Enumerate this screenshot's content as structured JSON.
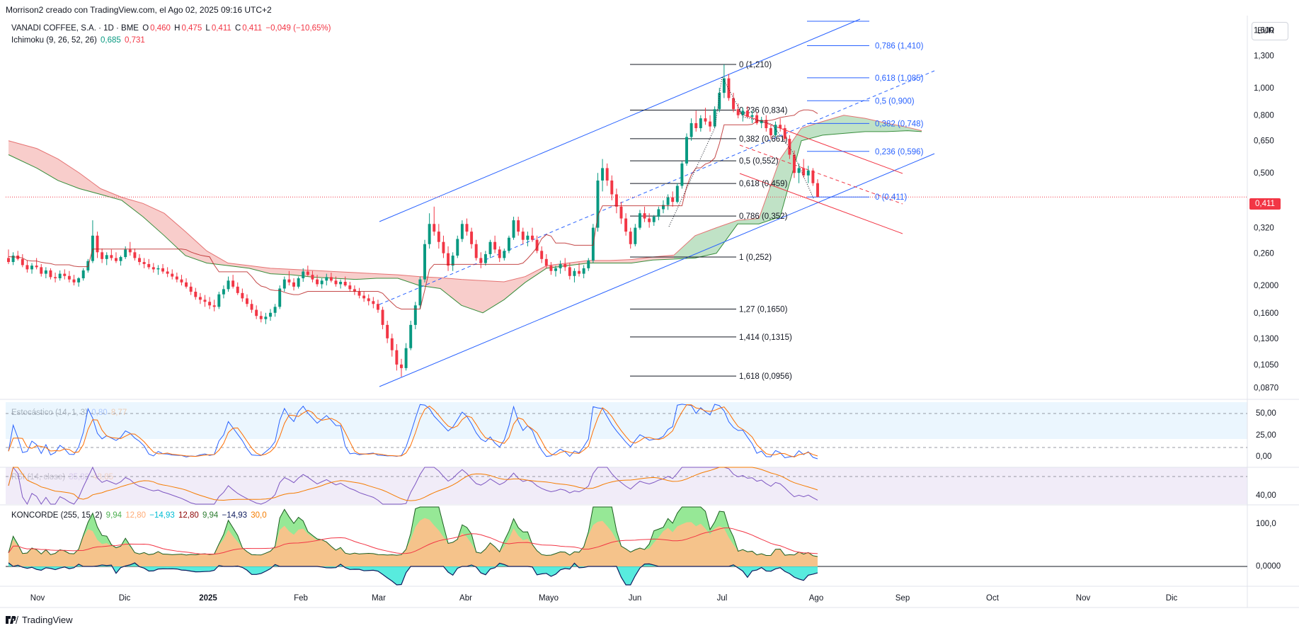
{
  "header": {
    "text": "Morrison2 creado con TradingView.com, el Ago 02, 2025 09:16 UTC+2"
  },
  "legend_main": {
    "symbol": "VANADI COFFEE, S.A. · 1D · BME",
    "o_label": "O",
    "o_value": "0,460",
    "h_label": "H",
    "h_value": "0,475",
    "l_label": "L",
    "l_value": "0,411",
    "c_label": "C",
    "c_value": "0,411",
    "change": "−0,049 (−10,65%)"
  },
  "legend_ichimoku": {
    "name": "Ichimoku (9, 26, 52, 26)",
    "v1": "0,685",
    "v2": "0,731"
  },
  "legend_stoch": {
    "name": "Estocástico (14, 1, 3)",
    "v1": "0,80",
    "v2": "8,77"
  },
  "legend_rsi": {
    "name": "RSI (14, close)",
    "v1": "35,82",
    "v2": "43,85"
  },
  "legend_koncorde": {
    "name": "KONCORDE (255, 15, 2)",
    "values": [
      "9,94",
      "12,80",
      "−14,93",
      "12,80",
      "9,94",
      "−14,93",
      "30,0"
    ]
  },
  "currency": "EUR",
  "last_price": "0,411",
  "footer": {
    "brand": "TradingView"
  },
  "colors": {
    "up": "#089981",
    "down": "#f23645",
    "fib_black": "#131722",
    "fib_blue": "#2962ff",
    "channel": "#2962ff",
    "downtrend": "#f23645",
    "kumo_bear": "#f7c8c5",
    "kumo_bull": "#b9dfc0",
    "stoch_k": "#2962ff",
    "stoch_d": "#ff6d00",
    "rsi": "#7e57c2",
    "rsi_ma": "#f57c00"
  },
  "chart_data": {
    "type": "candlestick",
    "scale": "log",
    "x_ticks": [
      "Nov",
      "Dic",
      "2025",
      "Feb",
      "Mar",
      "Abr",
      "Mayo",
      "Jun",
      "Jul",
      "Ago",
      "Sep",
      "Oct",
      "Nov",
      "Dic"
    ],
    "y_ticks": [
      "1,600",
      "1,300",
      "1,000",
      "0,800",
      "0,650",
      "0,500",
      "0,320",
      "0,260",
      "0,2000",
      "0,1600",
      "0,1300",
      "0,1050",
      "0,0870"
    ],
    "fib_retracement": [
      {
        "level": "0",
        "price": 1.21,
        "label": "0 (1,210)"
      },
      {
        "level": "0,236",
        "price": 0.834,
        "label": "0,236 (0,834)"
      },
      {
        "level": "0,382",
        "price": 0.661,
        "label": "0,382 (0,661)"
      },
      {
        "level": "0,5",
        "price": 0.552,
        "label": "0,5 (0,552)"
      },
      {
        "level": "0,618",
        "price": 0.459,
        "label": "0,618 (0,459)"
      },
      {
        "level": "0,786",
        "price": 0.352,
        "label": "0,786 (0,352)"
      },
      {
        "level": "1",
        "price": 0.252,
        "label": "1 (0,252)"
      },
      {
        "level": "1,27",
        "price": 0.165,
        "label": "1,27 (0,1650)"
      },
      {
        "level": "1,414",
        "price": 0.1315,
        "label": "1,414 (0,1315)"
      },
      {
        "level": "1,618",
        "price": 0.0956,
        "label": "1,618 (0,0956)"
      }
    ],
    "fib_extension": [
      {
        "level": "0,786",
        "price": 1.41,
        "label": "0,786 (1,410)"
      },
      {
        "level": "0,618",
        "price": 1.085,
        "label": "0,618 (1,085)"
      },
      {
        "level": "0,5",
        "price": 0.9,
        "label": "0,5 (0,900)"
      },
      {
        "level": "0,382",
        "price": 0.748,
        "label": "0,382 (0,748)"
      },
      {
        "level": "0,236",
        "price": 0.596,
        "label": "0,236 (0,596)"
      },
      {
        "level": "0",
        "price": 0.411,
        "label": "0 (0,411)"
      }
    ],
    "candles": [
      [
        0.25,
        0.268,
        0.238,
        0.242
      ],
      [
        0.242,
        0.262,
        0.236,
        0.255
      ],
      [
        0.255,
        0.265,
        0.245,
        0.248
      ],
      [
        0.248,
        0.258,
        0.232,
        0.236
      ],
      [
        0.236,
        0.245,
        0.222,
        0.228
      ],
      [
        0.228,
        0.24,
        0.22,
        0.235
      ],
      [
        0.235,
        0.25,
        0.228,
        0.232
      ],
      [
        0.232,
        0.238,
        0.215,
        0.22
      ],
      [
        0.22,
        0.232,
        0.212,
        0.226
      ],
      [
        0.226,
        0.23,
        0.21,
        0.214
      ],
      [
        0.214,
        0.222,
        0.205,
        0.212
      ],
      [
        0.212,
        0.226,
        0.208,
        0.22
      ],
      [
        0.22,
        0.228,
        0.21,
        0.216
      ],
      [
        0.216,
        0.225,
        0.205,
        0.21
      ],
      [
        0.21,
        0.218,
        0.2,
        0.205
      ],
      [
        0.205,
        0.214,
        0.198,
        0.212
      ],
      [
        0.212,
        0.23,
        0.208,
        0.226
      ],
      [
        0.226,
        0.248,
        0.222,
        0.244
      ],
      [
        0.244,
        0.34,
        0.24,
        0.3
      ],
      [
        0.3,
        0.31,
        0.25,
        0.262
      ],
      [
        0.262,
        0.27,
        0.24,
        0.248
      ],
      [
        0.248,
        0.262,
        0.236,
        0.256
      ],
      [
        0.256,
        0.268,
        0.245,
        0.25
      ],
      [
        0.25,
        0.262,
        0.24,
        0.244
      ],
      [
        0.244,
        0.255,
        0.235,
        0.252
      ],
      [
        0.252,
        0.275,
        0.248,
        0.268
      ],
      [
        0.268,
        0.285,
        0.255,
        0.262
      ],
      [
        0.262,
        0.27,
        0.245,
        0.25
      ],
      [
        0.25,
        0.258,
        0.236,
        0.242
      ],
      [
        0.242,
        0.25,
        0.23,
        0.238
      ],
      [
        0.238,
        0.248,
        0.228,
        0.232
      ],
      [
        0.232,
        0.24,
        0.222,
        0.228
      ],
      [
        0.228,
        0.236,
        0.218,
        0.23
      ],
      [
        0.23,
        0.238,
        0.22,
        0.224
      ],
      [
        0.224,
        0.232,
        0.214,
        0.22
      ],
      [
        0.22,
        0.228,
        0.21,
        0.215
      ],
      [
        0.215,
        0.222,
        0.205,
        0.21
      ],
      [
        0.21,
        0.218,
        0.2,
        0.205
      ],
      [
        0.205,
        0.212,
        0.195,
        0.198
      ],
      [
        0.198,
        0.205,
        0.185,
        0.19
      ],
      [
        0.19,
        0.196,
        0.178,
        0.182
      ],
      [
        0.182,
        0.188,
        0.172,
        0.178
      ],
      [
        0.178,
        0.185,
        0.168,
        0.175
      ],
      [
        0.175,
        0.182,
        0.165,
        0.17
      ],
      [
        0.17,
        0.178,
        0.162,
        0.168
      ],
      [
        0.168,
        0.19,
        0.165,
        0.186
      ],
      [
        0.186,
        0.2,
        0.18,
        0.194
      ],
      [
        0.194,
        0.215,
        0.19,
        0.208
      ],
      [
        0.208,
        0.218,
        0.195,
        0.198
      ],
      [
        0.198,
        0.205,
        0.185,
        0.188
      ],
      [
        0.188,
        0.195,
        0.175,
        0.18
      ],
      [
        0.18,
        0.186,
        0.168,
        0.172
      ],
      [
        0.172,
        0.178,
        0.16,
        0.164
      ],
      [
        0.164,
        0.17,
        0.152,
        0.156
      ],
      [
        0.156,
        0.162,
        0.148,
        0.152
      ],
      [
        0.152,
        0.16,
        0.146,
        0.155
      ],
      [
        0.155,
        0.165,
        0.15,
        0.16
      ],
      [
        0.16,
        0.172,
        0.155,
        0.168
      ],
      [
        0.168,
        0.2,
        0.165,
        0.195
      ],
      [
        0.195,
        0.215,
        0.19,
        0.21
      ],
      [
        0.21,
        0.225,
        0.2,
        0.205
      ],
      [
        0.205,
        0.212,
        0.192,
        0.198
      ],
      [
        0.198,
        0.215,
        0.195,
        0.212
      ],
      [
        0.212,
        0.23,
        0.206,
        0.224
      ],
      [
        0.224,
        0.235,
        0.215,
        0.218
      ],
      [
        0.218,
        0.225,
        0.205,
        0.21
      ],
      [
        0.21,
        0.218,
        0.198,
        0.202
      ],
      [
        0.202,
        0.212,
        0.195,
        0.208
      ],
      [
        0.208,
        0.22,
        0.2,
        0.214
      ],
      [
        0.214,
        0.222,
        0.205,
        0.208
      ],
      [
        0.208,
        0.215,
        0.198,
        0.202
      ],
      [
        0.202,
        0.21,
        0.195,
        0.206
      ],
      [
        0.206,
        0.215,
        0.198,
        0.2
      ],
      [
        0.2,
        0.206,
        0.19,
        0.194
      ],
      [
        0.194,
        0.2,
        0.185,
        0.19
      ],
      [
        0.19,
        0.196,
        0.18,
        0.184
      ],
      [
        0.184,
        0.19,
        0.175,
        0.18
      ],
      [
        0.18,
        0.186,
        0.17,
        0.176
      ],
      [
        0.176,
        0.182,
        0.166,
        0.172
      ],
      [
        0.172,
        0.178,
        0.16,
        0.164
      ],
      [
        0.164,
        0.168,
        0.14,
        0.145
      ],
      [
        0.145,
        0.15,
        0.125,
        0.13
      ],
      [
        0.13,
        0.135,
        0.112,
        0.118
      ],
      [
        0.118,
        0.124,
        0.1,
        0.105
      ],
      [
        0.105,
        0.11,
        0.095,
        0.102
      ],
      [
        0.102,
        0.125,
        0.1,
        0.12
      ],
      [
        0.12,
        0.15,
        0.118,
        0.145
      ],
      [
        0.145,
        0.175,
        0.14,
        0.17
      ],
      [
        0.17,
        0.215,
        0.165,
        0.21
      ],
      [
        0.21,
        0.29,
        0.205,
        0.28
      ],
      [
        0.28,
        0.36,
        0.27,
        0.33
      ],
      [
        0.33,
        0.38,
        0.3,
        0.31
      ],
      [
        0.31,
        0.33,
        0.27,
        0.285
      ],
      [
        0.285,
        0.3,
        0.25,
        0.26
      ],
      [
        0.26,
        0.275,
        0.225,
        0.235
      ],
      [
        0.235,
        0.262,
        0.225,
        0.255
      ],
      [
        0.255,
        0.3,
        0.25,
        0.292
      ],
      [
        0.292,
        0.34,
        0.285,
        0.33
      ],
      [
        0.33,
        0.345,
        0.3,
        0.31
      ],
      [
        0.31,
        0.32,
        0.27,
        0.28
      ],
      [
        0.28,
        0.29,
        0.245,
        0.25
      ],
      [
        0.25,
        0.262,
        0.23,
        0.24
      ],
      [
        0.24,
        0.265,
        0.235,
        0.258
      ],
      [
        0.258,
        0.29,
        0.25,
        0.285
      ],
      [
        0.285,
        0.3,
        0.26,
        0.268
      ],
      [
        0.268,
        0.275,
        0.242,
        0.25
      ],
      [
        0.25,
        0.27,
        0.245,
        0.265
      ],
      [
        0.265,
        0.3,
        0.26,
        0.295
      ],
      [
        0.295,
        0.35,
        0.29,
        0.34
      ],
      [
        0.34,
        0.35,
        0.3,
        0.31
      ],
      [
        0.31,
        0.32,
        0.28,
        0.29
      ],
      [
        0.29,
        0.31,
        0.275,
        0.3
      ],
      [
        0.3,
        0.32,
        0.285,
        0.29
      ],
      [
        0.29,
        0.3,
        0.26,
        0.265
      ],
      [
        0.265,
        0.275,
        0.24,
        0.248
      ],
      [
        0.248,
        0.258,
        0.23,
        0.235
      ],
      [
        0.235,
        0.242,
        0.218,
        0.225
      ],
      [
        0.225,
        0.235,
        0.215,
        0.23
      ],
      [
        0.23,
        0.245,
        0.22,
        0.238
      ],
      [
        0.238,
        0.25,
        0.225,
        0.232
      ],
      [
        0.232,
        0.24,
        0.21,
        0.216
      ],
      [
        0.216,
        0.23,
        0.205,
        0.225
      ],
      [
        0.225,
        0.24,
        0.215,
        0.22
      ],
      [
        0.22,
        0.236,
        0.212,
        0.23
      ],
      [
        0.23,
        0.25,
        0.225,
        0.245
      ],
      [
        0.245,
        0.33,
        0.24,
        0.32
      ],
      [
        0.32,
        0.5,
        0.31,
        0.47
      ],
      [
        0.47,
        0.56,
        0.43,
        0.52
      ],
      [
        0.52,
        0.54,
        0.45,
        0.47
      ],
      [
        0.47,
        0.49,
        0.4,
        0.42
      ],
      [
        0.42,
        0.44,
        0.36,
        0.38
      ],
      [
        0.38,
        0.395,
        0.33,
        0.345
      ],
      [
        0.345,
        0.36,
        0.3,
        0.31
      ],
      [
        0.31,
        0.32,
        0.27,
        0.28
      ],
      [
        0.28,
        0.33,
        0.275,
        0.32
      ],
      [
        0.32,
        0.37,
        0.315,
        0.36
      ],
      [
        0.36,
        0.38,
        0.335,
        0.345
      ],
      [
        0.345,
        0.36,
        0.32,
        0.335
      ],
      [
        0.335,
        0.355,
        0.325,
        0.35
      ],
      [
        0.35,
        0.38,
        0.34,
        0.372
      ],
      [
        0.372,
        0.4,
        0.36,
        0.385
      ],
      [
        0.385,
        0.42,
        0.37,
        0.41
      ],
      [
        0.41,
        0.43,
        0.38,
        0.395
      ],
      [
        0.395,
        0.46,
        0.39,
        0.45
      ],
      [
        0.45,
        0.55,
        0.44,
        0.54
      ],
      [
        0.54,
        0.69,
        0.53,
        0.67
      ],
      [
        0.67,
        0.78,
        0.65,
        0.75
      ],
      [
        0.75,
        0.83,
        0.7,
        0.72
      ],
      [
        0.72,
        0.8,
        0.7,
        0.78
      ],
      [
        0.78,
        0.85,
        0.74,
        0.76
      ],
      [
        0.76,
        0.8,
        0.7,
        0.73
      ],
      [
        0.73,
        0.86,
        0.72,
        0.84
      ],
      [
        0.84,
        1.0,
        0.82,
        0.96
      ],
      [
        0.96,
        1.21,
        0.92,
        1.08
      ],
      [
        1.08,
        1.12,
        0.9,
        0.92
      ],
      [
        0.92,
        0.96,
        0.82,
        0.84
      ],
      [
        0.84,
        0.88,
        0.78,
        0.8
      ],
      [
        0.8,
        0.85,
        0.76,
        0.83
      ],
      [
        0.83,
        0.86,
        0.78,
        0.79
      ],
      [
        0.79,
        0.83,
        0.75,
        0.8
      ],
      [
        0.8,
        0.82,
        0.74,
        0.75
      ],
      [
        0.75,
        0.79,
        0.72,
        0.77
      ],
      [
        0.77,
        0.8,
        0.7,
        0.72
      ],
      [
        0.72,
        0.74,
        0.66,
        0.68
      ],
      [
        0.68,
        0.76,
        0.67,
        0.74
      ],
      [
        0.74,
        0.78,
        0.7,
        0.72
      ],
      [
        0.72,
        0.74,
        0.65,
        0.66
      ],
      [
        0.66,
        0.68,
        0.56,
        0.58
      ],
      [
        0.58,
        0.6,
        0.48,
        0.5
      ],
      [
        0.5,
        0.54,
        0.46,
        0.52
      ],
      [
        0.52,
        0.56,
        0.48,
        0.49
      ],
      [
        0.49,
        0.53,
        0.46,
        0.51
      ],
      [
        0.51,
        0.52,
        0.45,
        0.46
      ],
      [
        0.46,
        0.475,
        0.411,
        0.411
      ]
    ],
    "kumo": [
      [
        0,
        0.65,
        0.58
      ],
      [
        40,
        0.61,
        0.52
      ],
      [
        70,
        0.56,
        0.47
      ],
      [
        100,
        0.5,
        0.44
      ],
      [
        130,
        0.44,
        0.42
      ],
      [
        160,
        0.41,
        0.4
      ],
      [
        190,
        0.39,
        0.35
      ],
      [
        220,
        0.36,
        0.3
      ],
      [
        250,
        0.31,
        0.255
      ],
      [
        280,
        0.265,
        0.24
      ],
      [
        310,
        0.24,
        0.235
      ],
      [
        340,
        0.235,
        0.23
      ],
      [
        370,
        0.23,
        0.22
      ],
      [
        400,
        0.228,
        0.218
      ],
      [
        430,
        0.226,
        0.214
      ],
      [
        460,
        0.224,
        0.212
      ],
      [
        490,
        0.222,
        0.21
      ],
      [
        520,
        0.22,
        0.212
      ],
      [
        550,
        0.218,
        0.212
      ],
      [
        580,
        0.215,
        0.2
      ],
      [
        610,
        0.213,
        0.195
      ],
      [
        640,
        0.21,
        0.17
      ],
      [
        670,
        0.208,
        0.16
      ],
      [
        700,
        0.206,
        0.178
      ],
      [
        730,
        0.215,
        0.205
      ],
      [
        760,
        0.235,
        0.23
      ],
      [
        790,
        0.24,
        0.235
      ],
      [
        820,
        0.245,
        0.24
      ],
      [
        850,
        0.245,
        0.24
      ],
      [
        880,
        0.247,
        0.24
      ],
      [
        910,
        0.252,
        0.246
      ],
      [
        940,
        0.256,
        0.248
      ],
      [
        970,
        0.3,
        0.25
      ],
      [
        1000,
        0.32,
        0.26
      ],
      [
        1030,
        0.34,
        0.33
      ],
      [
        1060,
        0.345,
        0.33
      ],
      [
        1090,
        0.56,
        0.35
      ],
      [
        1120,
        0.72,
        0.65
      ],
      [
        1150,
        0.76,
        0.68
      ],
      [
        1180,
        0.8,
        0.69
      ],
      [
        1210,
        0.78,
        0.7
      ],
      [
        1240,
        0.75,
        0.7
      ],
      [
        1270,
        0.725,
        0.705
      ],
      [
        1290,
        0.705,
        0.7
      ]
    ],
    "rsi_range": [
      0,
      100
    ],
    "stoch_range": [
      0,
      100
    ]
  }
}
